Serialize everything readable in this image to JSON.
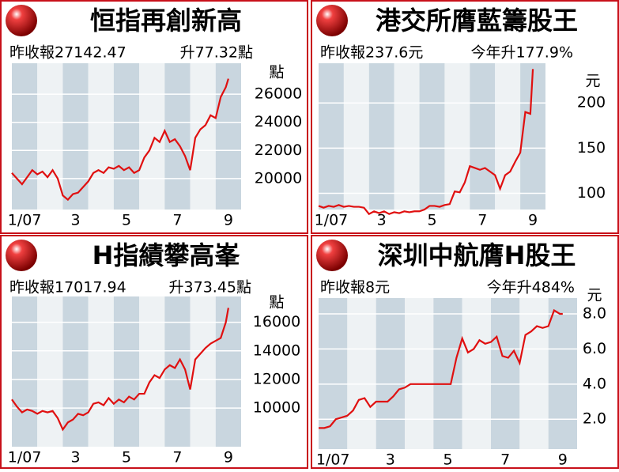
{
  "chart_data": [
    {
      "type": "line",
      "title": "恒指再創新高",
      "texts": [
        "昨收報27142.47",
        "升77.32點"
      ],
      "unit": "點",
      "color": "#e01010",
      "xlim": [
        1,
        10
      ],
      "xticks": [
        {
          "value": 1.5,
          "label": "1/07"
        },
        {
          "value": 3.5,
          "label": "3"
        },
        {
          "value": 5.5,
          "label": "5"
        },
        {
          "value": 7.5,
          "label": "7"
        },
        {
          "value": 9.5,
          "label": "9"
        }
      ],
      "ylim": [
        17800,
        28200
      ],
      "yticks": [
        20000,
        22000,
        24000,
        26000
      ],
      "x": [
        1.0,
        1.2,
        1.4,
        1.6,
        1.8,
        2.0,
        2.2,
        2.4,
        2.6,
        2.8,
        3.0,
        3.2,
        3.4,
        3.6,
        3.8,
        4.0,
        4.2,
        4.4,
        4.6,
        4.8,
        5.0,
        5.2,
        5.4,
        5.6,
        5.8,
        6.0,
        6.2,
        6.4,
        6.6,
        6.8,
        7.0,
        7.2,
        7.4,
        7.6,
        7.8,
        8.0,
        8.2,
        8.4,
        8.6,
        8.8,
        9.0,
        9.2,
        9.4,
        9.5
      ],
      "values": [
        20400,
        20000,
        19600,
        20100,
        20600,
        20300,
        20500,
        20100,
        20600,
        20000,
        18800,
        18500,
        18900,
        19000,
        19400,
        19800,
        20400,
        20600,
        20400,
        20800,
        20700,
        20900,
        20600,
        20800,
        20400,
        20600,
        21500,
        22000,
        22900,
        22600,
        23400,
        22600,
        22800,
        22300,
        21600,
        20600,
        22900,
        23500,
        23800,
        24500,
        24300,
        25800,
        26500,
        27100
      ]
    },
    {
      "type": "line",
      "title": "港交所膺藍籌股王",
      "texts": [
        "昨收報237.6元",
        "今年升177.9%"
      ],
      "unit": "元",
      "color": "#e01010",
      "xlim": [
        1,
        10
      ],
      "xticks": [
        {
          "value": 1.5,
          "label": "1/07"
        },
        {
          "value": 3.5,
          "label": "3"
        },
        {
          "value": 5.5,
          "label": "5"
        },
        {
          "value": 7.5,
          "label": "7"
        },
        {
          "value": 9.5,
          "label": "9"
        }
      ],
      "ylim": [
        82,
        244
      ],
      "yticks": [
        100,
        150,
        200
      ],
      "x": [
        1.0,
        1.2,
        1.4,
        1.6,
        1.8,
        2.0,
        2.2,
        2.4,
        2.6,
        2.8,
        3.0,
        3.2,
        3.4,
        3.6,
        3.8,
        4.0,
        4.2,
        4.4,
        4.6,
        4.8,
        5.0,
        5.2,
        5.4,
        5.6,
        5.8,
        6.0,
        6.2,
        6.4,
        6.6,
        6.8,
        7.0,
        7.2,
        7.4,
        7.6,
        7.8,
        8.0,
        8.2,
        8.4,
        8.6,
        8.8,
        9.0,
        9.2,
        9.4,
        9.5
      ],
      "values": [
        86,
        84,
        86,
        85,
        87,
        85,
        86,
        85,
        85,
        84,
        77,
        80,
        78,
        80,
        77,
        79,
        78,
        80,
        79,
        80,
        80,
        82,
        86,
        86,
        85,
        87,
        88,
        102,
        101,
        112,
        130,
        128,
        126,
        128,
        124,
        120,
        105,
        120,
        124,
        135,
        145,
        190,
        188,
        237.6
      ]
    },
    {
      "type": "line",
      "title": "H指績攀高峯",
      "texts": [
        "昨收報17017.94",
        "升373.45點"
      ],
      "unit": "點",
      "color": "#e01010",
      "xlim": [
        1,
        10
      ],
      "xticks": [
        {
          "value": 1.5,
          "label": "1/07"
        },
        {
          "value": 3.5,
          "label": "3"
        },
        {
          "value": 5.5,
          "label": "5"
        },
        {
          "value": 7.5,
          "label": "7"
        },
        {
          "value": 9.5,
          "label": "9"
        }
      ],
      "ylim": [
        7300,
        17800
      ],
      "yticks": [
        10000,
        12000,
        14000,
        16000
      ],
      "x": [
        1.0,
        1.2,
        1.4,
        1.6,
        1.8,
        2.0,
        2.2,
        2.4,
        2.6,
        2.8,
        3.0,
        3.2,
        3.4,
        3.6,
        3.8,
        4.0,
        4.2,
        4.4,
        4.6,
        4.8,
        5.0,
        5.2,
        5.4,
        5.6,
        5.8,
        6.0,
        6.2,
        6.4,
        6.6,
        6.8,
        7.0,
        7.2,
        7.4,
        7.6,
        7.8,
        8.0,
        8.2,
        8.4,
        8.6,
        8.8,
        9.0,
        9.2,
        9.4,
        9.5
      ],
      "values": [
        10600,
        10100,
        9700,
        9900,
        9800,
        9600,
        9800,
        9700,
        9800,
        9300,
        8500,
        9000,
        9200,
        9600,
        9500,
        9700,
        10300,
        10400,
        10200,
        10700,
        10300,
        10600,
        10400,
        10800,
        10600,
        11000,
        11000,
        11800,
        12300,
        12100,
        12700,
        13000,
        12800,
        13400,
        12700,
        11300,
        13400,
        13800,
        14200,
        14500,
        14700,
        14900,
        16000,
        17000
      ]
    },
    {
      "type": "line",
      "title": "深圳中航膺H股王",
      "texts": [
        "昨收報8元",
        "今年升484%"
      ],
      "unit": "元",
      "color": "#e01010",
      "xlim": [
        1,
        10
      ],
      "xticks": [
        {
          "value": 1.5,
          "label": "1/07"
        },
        {
          "value": 3.5,
          "label": "3"
        },
        {
          "value": 5.5,
          "label": "5"
        },
        {
          "value": 7.5,
          "label": "7"
        },
        {
          "value": 9.5,
          "label": "9"
        }
      ],
      "ylim": [
        0.3,
        8.9
      ],
      "yticks": [
        {
          "value": 2,
          "label": "2.0"
        },
        {
          "value": 4,
          "label": "4.0"
        },
        {
          "value": 6,
          "label": "6.0"
        },
        {
          "value": 8,
          "label": "8.0"
        }
      ],
      "x": [
        1.0,
        1.2,
        1.4,
        1.6,
        1.8,
        2.0,
        2.2,
        2.4,
        2.6,
        2.8,
        3.0,
        3.2,
        3.4,
        3.6,
        3.8,
        4.0,
        4.2,
        4.4,
        4.6,
        4.8,
        5.0,
        5.2,
        5.4,
        5.6,
        5.8,
        6.0,
        6.2,
        6.4,
        6.6,
        6.8,
        7.0,
        7.2,
        7.4,
        7.6,
        7.8,
        8.0,
        8.2,
        8.4,
        8.6,
        8.8,
        9.0,
        9.2,
        9.4,
        9.5
      ],
      "values": [
        1.5,
        1.5,
        1.6,
        2.0,
        2.1,
        2.2,
        2.5,
        3.1,
        3.2,
        2.7,
        3.0,
        3.0,
        3.0,
        3.3,
        3.7,
        3.8,
        4.0,
        4.0,
        4.0,
        4.0,
        4.0,
        4.0,
        4.0,
        4.0,
        5.5,
        6.6,
        5.8,
        6.0,
        6.5,
        6.3,
        6.4,
        6.7,
        5.6,
        5.5,
        5.9,
        5.2,
        6.8,
        7.0,
        7.3,
        7.2,
        7.3,
        8.2,
        8.0,
        8.0
      ]
    }
  ]
}
